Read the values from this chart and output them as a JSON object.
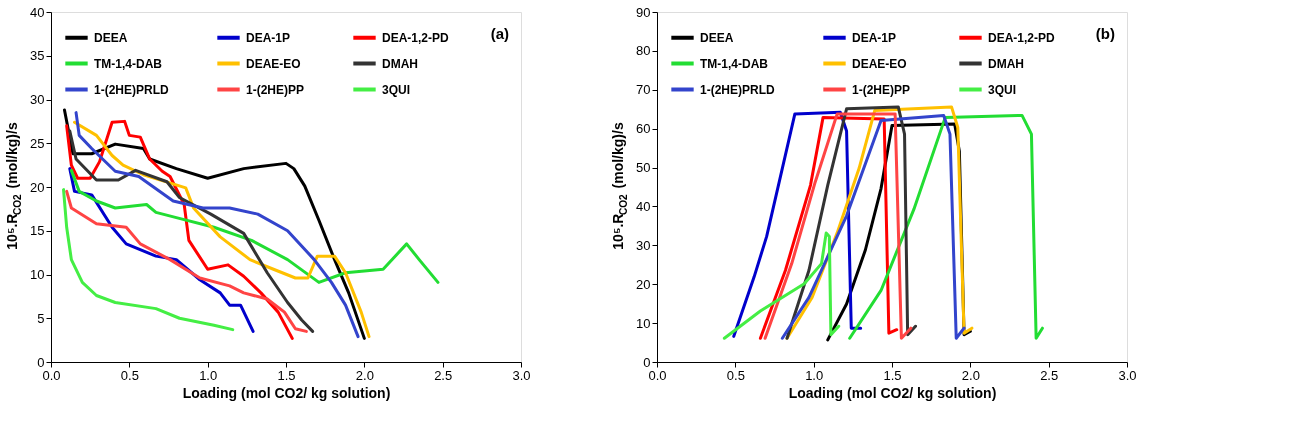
{
  "chart_data": [
    {
      "type": "line",
      "xlabel": "Loading (mol CO2/ kg solution)",
      "ylabel": "10⁵.R$_{CO2}$ (mol/kg)/s",
      "annotations": [
        "(a)"
      ],
      "xlim": [
        0,
        3
      ],
      "xticks": [
        {
          "value": 0,
          "label": "0.0"
        },
        {
          "value": 0.5,
          "label": "0.5"
        },
        {
          "value": 1,
          "label": "1.0"
        },
        {
          "value": 1.5,
          "label": "1.5"
        },
        {
          "value": 2,
          "label": "2.0"
        },
        {
          "value": 2.5,
          "label": "2.5"
        },
        {
          "value": 3,
          "label": "3.0"
        }
      ],
      "ylim": [
        0,
        40
      ],
      "yticks": [
        0,
        5,
        10,
        15,
        20,
        25,
        30,
        35,
        40
      ],
      "grid": false,
      "legend": "top left",
      "marker": "none",
      "series": [
        {
          "name": "DEEA",
          "color": "#000000",
          "x": [
            0.086,
            0.14,
            0.26,
            0.41,
            0.59,
            0.63,
            0.8,
            1.0,
            1.23,
            1.5,
            1.55,
            1.62,
            1.71,
            1.81,
            1.9,
            2.0
          ],
          "values": [
            28.8,
            23.8,
            23.8,
            24.9,
            24.4,
            23.2,
            22.1,
            21.0,
            22.1,
            22.7,
            22.1,
            20.1,
            16.2,
            11.7,
            7.9,
            2.7
          ]
        },
        {
          "name": "DEA-1P",
          "color": "#0000cc",
          "x": [
            0.12,
            0.15,
            0.26,
            0.39,
            0.48,
            0.67,
            0.8,
            0.95,
            1.08,
            1.14,
            1.21,
            1.29
          ],
          "values": [
            22.1,
            19.5,
            19.1,
            15.4,
            13.5,
            12.1,
            11.7,
            9.4,
            7.9,
            6.5,
            6.5,
            3.5
          ]
        },
        {
          "name": "DEA-1,2-PD",
          "color": "#ff0000",
          "x": [
            0.1,
            0.13,
            0.17,
            0.25,
            0.31,
            0.39,
            0.47,
            0.5,
            0.57,
            0.63,
            0.71,
            0.76,
            0.85,
            0.88,
            1.0,
            1.13,
            1.23,
            1.34,
            1.45,
            1.54
          ],
          "values": [
            27.0,
            22.5,
            21.0,
            21.0,
            22.9,
            27.4,
            27.5,
            25.9,
            25.7,
            23.2,
            21.8,
            21.2,
            18.0,
            13.9,
            10.6,
            11.1,
            9.8,
            7.9,
            5.7,
            2.7
          ]
        },
        {
          "name": "TM-1,4-DAB",
          "color": "#22dd33",
          "x": [
            0.13,
            0.18,
            0.29,
            0.41,
            0.61,
            0.67,
            0.8,
            1.04,
            1.28,
            1.51,
            1.71,
            1.88,
            2.12,
            2.27,
            2.35,
            2.47
          ],
          "values": [
            21.9,
            19.5,
            18.4,
            17.6,
            18.0,
            17.1,
            16.5,
            15.4,
            13.9,
            11.7,
            9.1,
            10.2,
            10.6,
            13.5,
            11.7,
            9.1
          ]
        },
        {
          "name": "DEAE-EO",
          "color": "#ffc000",
          "x": [
            0.15,
            0.29,
            0.39,
            0.46,
            0.59,
            0.86,
            0.91,
            1.08,
            1.27,
            1.42,
            1.56,
            1.64,
            1.7,
            1.81,
            1.88,
            1.98,
            2.03
          ],
          "values": [
            27.4,
            25.9,
            23.6,
            22.5,
            21.4,
            19.9,
            17.6,
            14.3,
            11.7,
            10.6,
            9.6,
            9.6,
            12.1,
            12.1,
            10.2,
            5.7,
            2.9
          ]
        },
        {
          "name": "DMAH",
          "color": "#333333",
          "x": [
            0.12,
            0.16,
            0.29,
            0.43,
            0.54,
            0.74,
            0.82,
            1.02,
            1.23,
            1.38,
            1.51,
            1.6,
            1.67
          ],
          "values": [
            26.4,
            23.2,
            20.8,
            20.8,
            21.9,
            20.6,
            18.8,
            16.9,
            14.7,
            10.2,
            6.8,
            4.8,
            3.5
          ]
        },
        {
          "name": "1-(2HE)PRLD",
          "color": "#3344cc",
          "x": [
            0.16,
            0.18,
            0.26,
            0.41,
            0.56,
            0.78,
            0.97,
            1.14,
            1.32,
            1.51,
            1.68,
            1.79,
            1.88,
            1.96
          ],
          "values": [
            28.5,
            25.9,
            24.4,
            21.8,
            21.2,
            18.4,
            17.6,
            17.6,
            16.9,
            15.0,
            11.7,
            9.1,
            6.5,
            2.9
          ]
        },
        {
          "name": "1-(2HE)PP",
          "color": "#ff4444",
          "x": [
            0.1,
            0.13,
            0.29,
            0.48,
            0.57,
            0.76,
            0.95,
            1.14,
            1.23,
            1.38,
            1.49,
            1.56,
            1.63
          ],
          "values": [
            19.5,
            17.6,
            15.8,
            15.4,
            13.5,
            11.7,
            9.6,
            8.7,
            7.9,
            7.2,
            5.7,
            3.8,
            3.5
          ]
        },
        {
          "name": "3QUI",
          "color": "#44ee44",
          "x": [
            0.08,
            0.1,
            0.13,
            0.2,
            0.29,
            0.41,
            0.67,
            0.82,
            1.04,
            1.16
          ],
          "values": [
            19.7,
            15.4,
            11.7,
            9.1,
            7.6,
            6.8,
            6.1,
            5.0,
            4.2,
            3.7
          ]
        }
      ]
    },
    {
      "type": "line",
      "xlabel": "Loading (mol CO2/ kg solution)",
      "ylabel": "10⁵.R$_{CO2}$ (mol/kg)/s",
      "annotations": [
        "(b)"
      ],
      "xlim": [
        0,
        3
      ],
      "xticks": [
        {
          "value": 0,
          "label": "0.0"
        },
        {
          "value": 0.5,
          "label": "0.5"
        },
        {
          "value": 1,
          "label": "1.0"
        },
        {
          "value": 1.5,
          "label": "1.5"
        },
        {
          "value": 2,
          "label": "2.0"
        },
        {
          "value": 2.5,
          "label": "2.5"
        },
        {
          "value": 3,
          "label": "3.0"
        }
      ],
      "ylim": [
        0,
        90
      ],
      "yticks": [
        0,
        10,
        20,
        30,
        40,
        50,
        60,
        70,
        80,
        90
      ],
      "grid": false,
      "legend": "top left",
      "marker": "none",
      "series": [
        {
          "name": "DEEA",
          "color": "#000000",
          "x": [
            1.09,
            1.21,
            1.33,
            1.43,
            1.5,
            1.9,
            1.93,
            1.96,
            2.0
          ],
          "values": [
            5.7,
            14.9,
            28.8,
            44.6,
            60.8,
            61.2,
            54.2,
            7.0,
            7.9
          ]
        },
        {
          "name": "DEA-1P",
          "color": "#0000cc",
          "x": [
            0.49,
            0.62,
            0.7,
            0.8,
            0.88,
            1.17,
            1.21,
            1.24,
            1.3
          ],
          "values": [
            6.6,
            21.9,
            32.3,
            49.8,
            63.8,
            64.2,
            59.4,
            8.7,
            8.7
          ]
        },
        {
          "name": "DEA-1,2-PD",
          "color": "#ff0000",
          "x": [
            0.66,
            0.82,
            0.98,
            1.06,
            1.45,
            1.48,
            1.53
          ],
          "values": [
            6.1,
            23.6,
            45.5,
            62.9,
            62.5,
            7.4,
            8.3
          ]
        },
        {
          "name": "TM-1,4-DAB",
          "color": "#22dd33",
          "x": [
            1.23,
            1.43,
            1.64,
            1.84,
            2.33,
            2.39,
            2.42,
            2.46
          ],
          "values": [
            6.1,
            18.4,
            39.3,
            62.9,
            63.4,
            58.6,
            6.1,
            8.7
          ]
        },
        {
          "name": "DEAE-EO",
          "color": "#ffc000",
          "x": [
            0.83,
            0.99,
            1.15,
            1.29,
            1.39,
            1.88,
            1.92,
            1.96,
            2.01
          ],
          "values": [
            6.1,
            16.6,
            33.2,
            49.8,
            64.7,
            65.6,
            60.3,
            7.4,
            8.7
          ]
        },
        {
          "name": "DMAH",
          "color": "#333333",
          "x": [
            0.83,
            0.97,
            1.09,
            1.21,
            1.54,
            1.58,
            1.6,
            1.65
          ],
          "values": [
            6.1,
            23.6,
            45.5,
            65.1,
            65.6,
            58.6,
            7.0,
            9.2
          ]
        },
        {
          "name": "1-(2HE)PRLD",
          "color": "#3344cc",
          "x": [
            0.8,
            0.97,
            1.21,
            1.43,
            1.83,
            1.87,
            1.91,
            1.96
          ],
          "values": [
            6.1,
            16.6,
            37.6,
            62.1,
            63.4,
            58.6,
            6.1,
            8.7
          ]
        },
        {
          "name": "1-(2HE)PP",
          "color": "#ff4444",
          "x": [
            0.69,
            0.86,
            1.01,
            1.15,
            1.52,
            1.56,
            1.62
          ],
          "values": [
            6.1,
            25.3,
            46.3,
            63.8,
            63.8,
            6.1,
            8.7
          ]
        },
        {
          "name": "3QUI",
          "color": "#44ee44",
          "x": [
            0.43,
            0.66,
            0.94,
            1.05,
            1.08,
            1.1,
            1.11,
            1.16
          ],
          "values": [
            6.1,
            13.1,
            20.1,
            25.3,
            33.2,
            32.3,
            7.0,
            9.2
          ]
        }
      ]
    }
  ]
}
